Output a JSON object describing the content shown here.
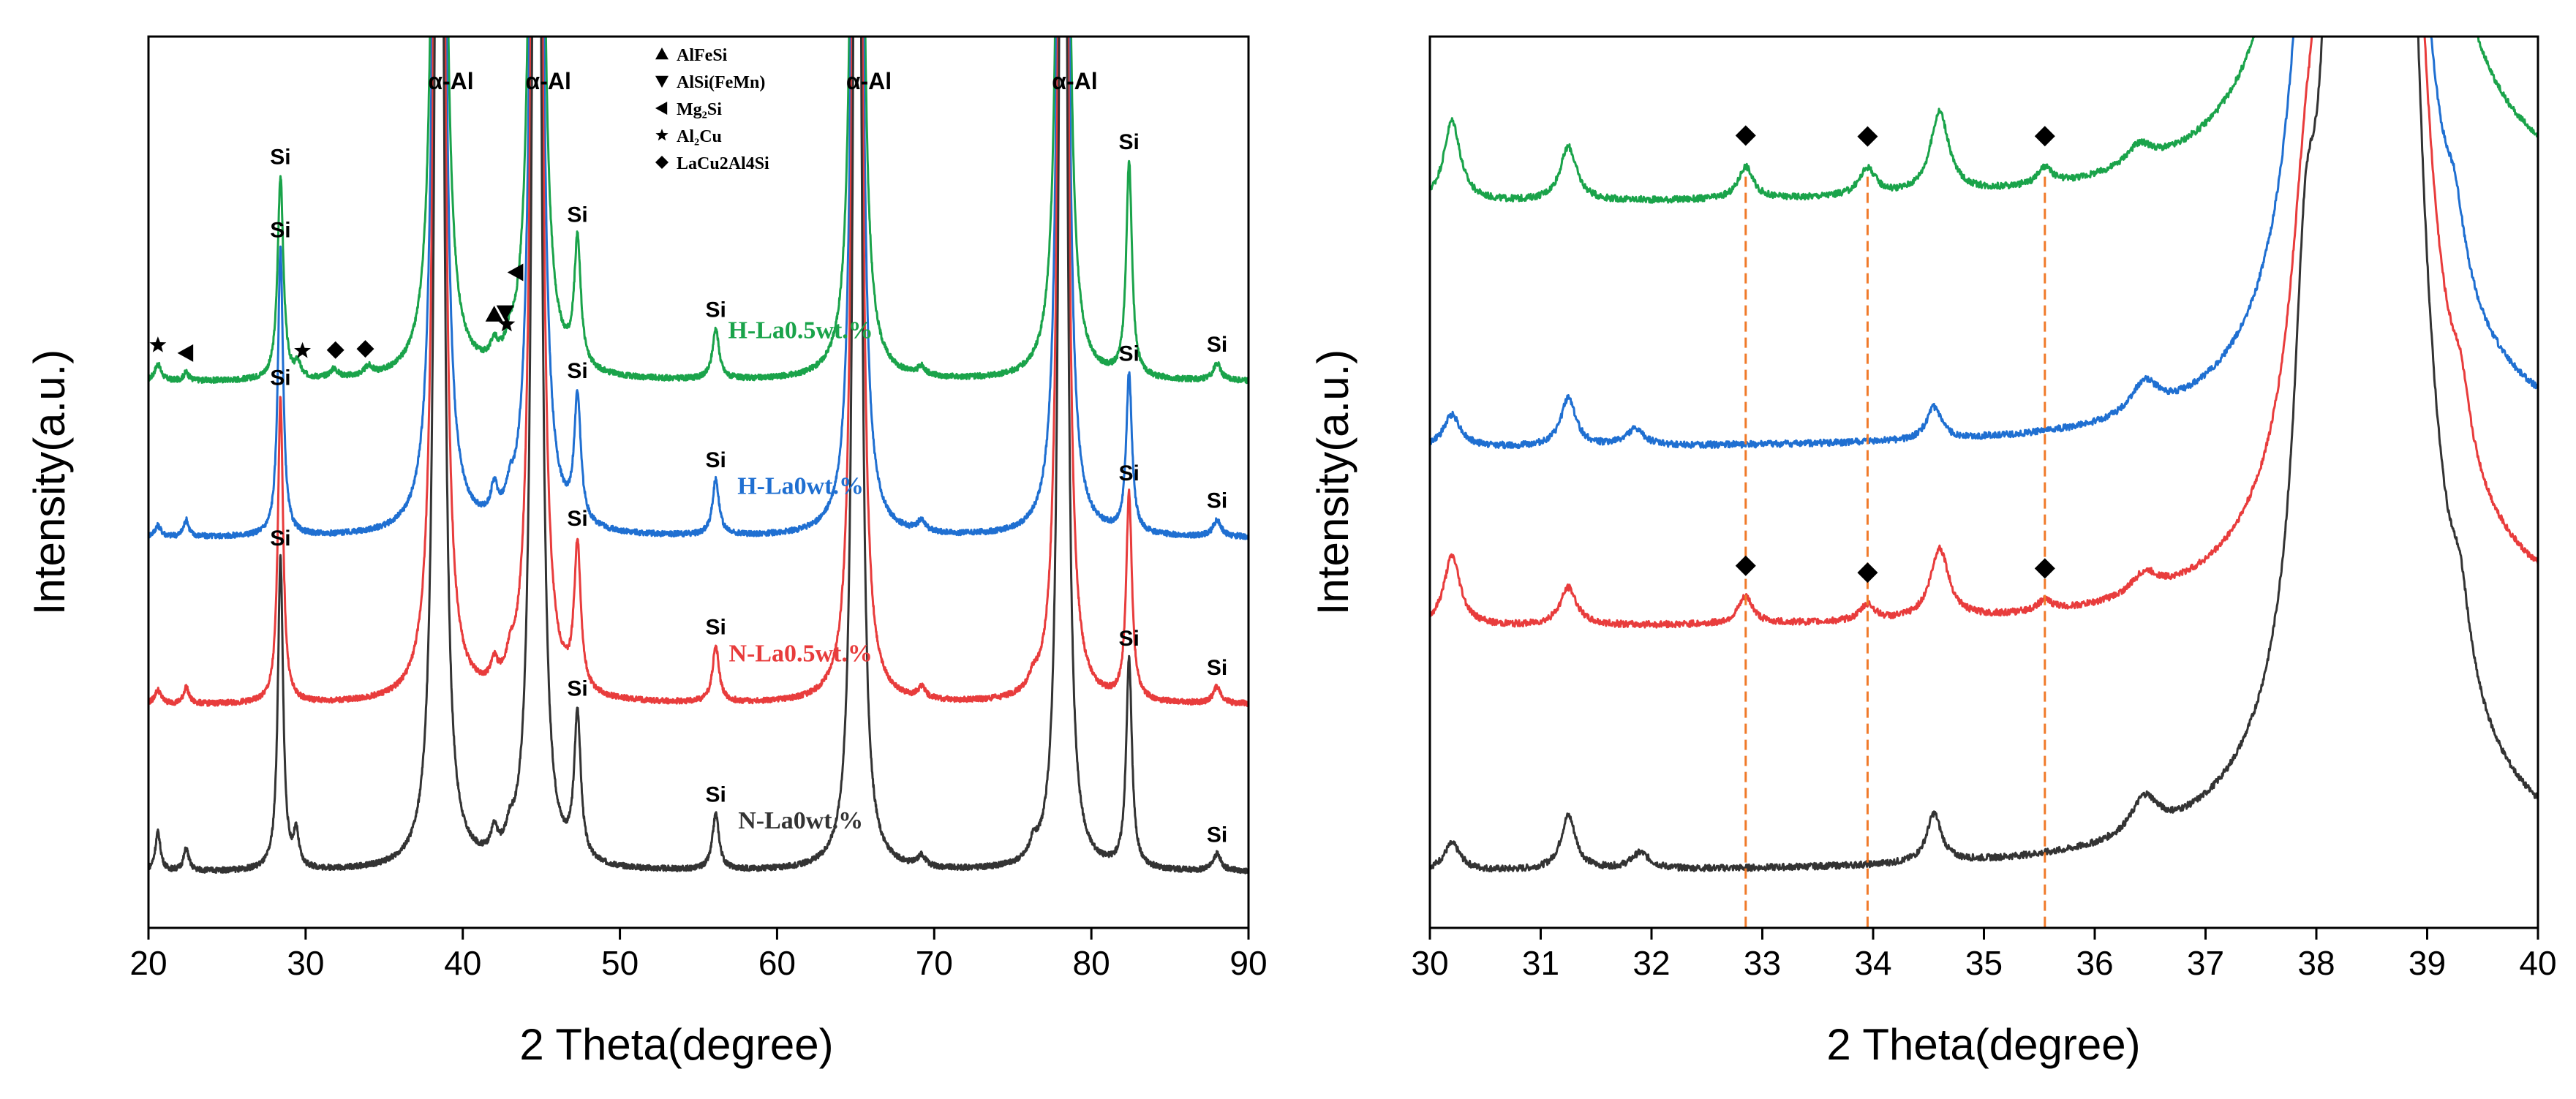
{
  "chart_data": [
    {
      "type": "line",
      "panel": "left",
      "xlabel": "2 Theta(degree)",
      "ylabel": "Intensity(a.u.)",
      "xlim": [
        20,
        90
      ],
      "xticks": [
        20,
        30,
        40,
        50,
        60,
        70,
        80,
        90
      ],
      "y_ticks_shown": false,
      "series": [
        {
          "name": "H-La0.5wt.%",
          "color": "#1aa34a",
          "baseline": 0.86,
          "peaks": [
            {
              "x": 20.6,
              "h": 0.06,
              "w": 0.25
            },
            {
              "x": 22.4,
              "h": 0.03,
              "w": 0.2
            },
            {
              "x": 28.4,
              "h": 0.73,
              "w": 0.22
            },
            {
              "x": 29.5,
              "h": 0.05,
              "w": 0.2
            },
            {
              "x": 31.8,
              "h": 0.03,
              "w": 0.3
            },
            {
              "x": 34.0,
              "h": 0.03,
              "w": 0.3
            },
            {
              "x": 38.5,
              "h": 8.0,
              "w": 0.25
            },
            {
              "x": 42.0,
              "h": 0.06,
              "w": 0.25
            },
            {
              "x": 43.0,
              "h": 0.05,
              "w": 0.25
            },
            {
              "x": 44.7,
              "h": 8.0,
              "w": 0.25
            },
            {
              "x": 47.3,
              "h": 0.45,
              "w": 0.25
            },
            {
              "x": 56.1,
              "h": 0.18,
              "w": 0.25
            },
            {
              "x": 65.1,
              "h": 8.0,
              "w": 0.22
            },
            {
              "x": 69.2,
              "h": 0.03,
              "w": 0.3
            },
            {
              "x": 78.2,
              "h": 8.0,
              "w": 0.22
            },
            {
              "x": 82.4,
              "h": 0.77,
              "w": 0.22
            },
            {
              "x": 88.0,
              "h": 0.06,
              "w": 0.3
            }
          ]
        },
        {
          "name": "H-La0wt.%",
          "color": "#1f6fd1",
          "baseline": 0.3,
          "peaks": [
            {
              "x": 20.6,
              "h": 0.04,
              "w": 0.25
            },
            {
              "x": 22.4,
              "h": 0.06,
              "w": 0.2
            },
            {
              "x": 28.4,
              "h": 1.03,
              "w": 0.2
            },
            {
              "x": 38.5,
              "h": 8.0,
              "w": 0.25
            },
            {
              "x": 42.0,
              "h": 0.1,
              "w": 0.25
            },
            {
              "x": 43.0,
              "h": 0.06,
              "w": 0.25
            },
            {
              "x": 44.7,
              "h": 8.0,
              "w": 0.25
            },
            {
              "x": 47.3,
              "h": 0.45,
              "w": 0.25
            },
            {
              "x": 56.1,
              "h": 0.2,
              "w": 0.25
            },
            {
              "x": 65.1,
              "h": 8.0,
              "w": 0.22
            },
            {
              "x": 69.2,
              "h": 0.04,
              "w": 0.3
            },
            {
              "x": 78.2,
              "h": 8.0,
              "w": 0.22
            },
            {
              "x": 82.4,
              "h": 0.57,
              "w": 0.22
            },
            {
              "x": 88.0,
              "h": 0.06,
              "w": 0.3
            }
          ]
        },
        {
          "name": "N-La0.5wt.%",
          "color": "#e83c3c",
          "baseline": -0.3,
          "peaks": [
            {
              "x": 20.6,
              "h": 0.05,
              "w": 0.25
            },
            {
              "x": 22.4,
              "h": 0.06,
              "w": 0.2
            },
            {
              "x": 28.4,
              "h": 1.1,
              "w": 0.2
            },
            {
              "x": 38.5,
              "h": 8.0,
              "w": 0.25
            },
            {
              "x": 42.0,
              "h": 0.07,
              "w": 0.25
            },
            {
              "x": 43.0,
              "h": 0.06,
              "w": 0.25
            },
            {
              "x": 44.7,
              "h": 8.0,
              "w": 0.25
            },
            {
              "x": 47.3,
              "h": 0.52,
              "w": 0.25
            },
            {
              "x": 56.1,
              "h": 0.2,
              "w": 0.25
            },
            {
              "x": 65.1,
              "h": 8.0,
              "w": 0.22
            },
            {
              "x": 69.2,
              "h": 0.04,
              "w": 0.3
            },
            {
              "x": 76.3,
              "h": 0.04,
              "w": 0.3
            },
            {
              "x": 78.2,
              "h": 8.0,
              "w": 0.22
            },
            {
              "x": 82.4,
              "h": 0.74,
              "w": 0.22
            },
            {
              "x": 88.0,
              "h": 0.06,
              "w": 0.3
            }
          ]
        },
        {
          "name": "N-La0wt.%",
          "color": "#333333",
          "baseline": -0.9,
          "peaks": [
            {
              "x": 20.6,
              "h": 0.14,
              "w": 0.2
            },
            {
              "x": 22.4,
              "h": 0.08,
              "w": 0.2
            },
            {
              "x": 28.4,
              "h": 1.12,
              "w": 0.2
            },
            {
              "x": 29.4,
              "h": 0.12,
              "w": 0.2
            },
            {
              "x": 38.5,
              "h": 7.0,
              "w": 0.25
            },
            {
              "x": 42.0,
              "h": 0.08,
              "w": 0.25
            },
            {
              "x": 43.0,
              "h": 0.06,
              "w": 0.25
            },
            {
              "x": 44.7,
              "h": 7.0,
              "w": 0.25
            },
            {
              "x": 47.3,
              "h": 0.52,
              "w": 0.25
            },
            {
              "x": 56.1,
              "h": 0.2,
              "w": 0.25
            },
            {
              "x": 65.1,
              "h": 7.0,
              "w": 0.22
            },
            {
              "x": 69.2,
              "h": 0.04,
              "w": 0.3
            },
            {
              "x": 76.3,
              "h": 0.05,
              "w": 0.3
            },
            {
              "x": 78.2,
              "h": 7.0,
              "w": 0.22
            },
            {
              "x": 82.4,
              "h": 0.75,
              "w": 0.22
            },
            {
              "x": 88.0,
              "h": 0.06,
              "w": 0.3
            }
          ]
        }
      ],
      "peak_labels": [
        {
          "text": "Si",
          "x": 28.4,
          "series": 0
        },
        {
          "text": "Si",
          "x": 47.3,
          "series": 0
        },
        {
          "text": "Si",
          "x": 56.1,
          "series": 0
        },
        {
          "text": "Si",
          "x": 82.4,
          "series": 0
        },
        {
          "text": "Si",
          "x": 88.0,
          "series": 0
        },
        {
          "text": "Si",
          "x": 28.4,
          "series": 1
        },
        {
          "text": "Si",
          "x": 47.3,
          "series": 1
        },
        {
          "text": "Si",
          "x": 56.1,
          "series": 1
        },
        {
          "text": "Si",
          "x": 82.4,
          "series": 1
        },
        {
          "text": "Si",
          "x": 88.0,
          "series": 1
        },
        {
          "text": "Si",
          "x": 28.4,
          "series": 2
        },
        {
          "text": "Si",
          "x": 47.3,
          "series": 2
        },
        {
          "text": "Si",
          "x": 56.1,
          "series": 2
        },
        {
          "text": "Si",
          "x": 82.4,
          "series": 2
        },
        {
          "text": "Si",
          "x": 88.0,
          "series": 2
        },
        {
          "text": "Si",
          "x": 28.4,
          "series": 3
        },
        {
          "text": "Si",
          "x": 47.3,
          "series": 3
        },
        {
          "text": "Si",
          "x": 56.1,
          "series": 3
        },
        {
          "text": "Si",
          "x": 82.4,
          "series": 3
        },
        {
          "text": "Si",
          "x": 88.0,
          "series": 3
        }
      ],
      "alpha_labels": [
        {
          "text": "α-Al",
          "x": 38.5
        },
        {
          "text": "α-Al",
          "x": 44.7
        },
        {
          "text": "α-Al",
          "x": 65.1
        },
        {
          "text": "α-Al",
          "x": 78.2
        }
      ],
      "phase_markers": [
        {
          "symbol": "star",
          "x": 20.6
        },
        {
          "symbol": "left-triangle",
          "x": 22.4
        },
        {
          "symbol": "star",
          "x": 29.8
        },
        {
          "symbol": "diamond",
          "x": 31.9
        },
        {
          "symbol": "diamond",
          "x": 33.8
        },
        {
          "symbol": "triangle-up",
          "x": 42.0
        },
        {
          "symbol": "triangle-down",
          "x": 42.7
        },
        {
          "symbol": "left-triangle",
          "x": 43.4
        },
        {
          "symbol": "star",
          "x": 42.8
        }
      ],
      "legend": {
        "placement": "top-center",
        "entries": [
          {
            "symbol": "triangle-up",
            "label": "AlFeSi"
          },
          {
            "symbol": "triangle-down",
            "label": "AlSi(FeMn)"
          },
          {
            "symbol": "left-triangle",
            "label": "Mg₂Si"
          },
          {
            "symbol": "star",
            "label": "Al₂Cu"
          },
          {
            "symbol": "diamond",
            "label": "LaCu2Al4Si"
          }
        ]
      }
    },
    {
      "type": "line",
      "panel": "right",
      "xlabel": "2 Theta(degree)",
      "ylabel": "Intensity(a.u.)",
      "xlim": [
        30,
        40
      ],
      "xticks": [
        30,
        31,
        32,
        33,
        34,
        35,
        36,
        37,
        38,
        39,
        40
      ],
      "y_ticks_shown": false,
      "series": [
        {
          "name": "H-La0.5wt.%",
          "color": "#1aa34a",
          "baseline": 5.85,
          "peaks": [
            {
              "x": 30.2,
              "h": 0.75,
              "w": 0.09
            },
            {
              "x": 31.25,
              "h": 0.5,
              "w": 0.09
            },
            {
              "x": 32.85,
              "h": 0.3,
              "w": 0.08
            },
            {
              "x": 33.95,
              "h": 0.25,
              "w": 0.09
            },
            {
              "x": 34.6,
              "h": 0.75,
              "w": 0.1
            },
            {
              "x": 35.55,
              "h": 0.15,
              "w": 0.08
            },
            {
              "x": 36.4,
              "h": 0.2,
              "w": 0.15
            },
            {
              "x": 37.85,
              "h": 0.7,
              "w": 0.15
            },
            {
              "x": 38.45,
              "h": 60.0,
              "w": 0.16
            },
            {
              "x": 39.2,
              "h": 0.55,
              "w": 0.1
            }
          ]
        },
        {
          "name": "H-La0wt.%",
          "color": "#1f6fd1",
          "baseline": 3.6,
          "peaks": [
            {
              "x": 30.2,
              "h": 0.3,
              "w": 0.09
            },
            {
              "x": 31.25,
              "h": 0.45,
              "w": 0.08
            },
            {
              "x": 31.85,
              "h": 0.15,
              "w": 0.1
            },
            {
              "x": 34.55,
              "h": 0.3,
              "w": 0.08
            },
            {
              "x": 36.45,
              "h": 0.3,
              "w": 0.15
            },
            {
              "x": 37.9,
              "h": 1.2,
              "w": 0.16
            },
            {
              "x": 38.45,
              "h": 60.0,
              "w": 0.15
            },
            {
              "x": 39.25,
              "h": 0.5,
              "w": 0.1
            }
          ]
        },
        {
          "name": "N-La0.5wt.%",
          "color": "#e83c3c",
          "baseline": 1.95,
          "peaks": [
            {
              "x": 30.2,
              "h": 0.65,
              "w": 0.09
            },
            {
              "x": 31.25,
              "h": 0.35,
              "w": 0.09
            },
            {
              "x": 32.85,
              "h": 0.25,
              "w": 0.08
            },
            {
              "x": 33.95,
              "h": 0.15,
              "w": 0.08
            },
            {
              "x": 34.6,
              "h": 0.65,
              "w": 0.1
            },
            {
              "x": 35.55,
              "h": 0.1,
              "w": 0.08
            },
            {
              "x": 36.45,
              "h": 0.2,
              "w": 0.15
            },
            {
              "x": 37.9,
              "h": 1.3,
              "w": 0.16
            },
            {
              "x": 38.5,
              "h": 60.0,
              "w": 0.15
            },
            {
              "x": 39.3,
              "h": 0.5,
              "w": 0.1
            }
          ]
        },
        {
          "name": "N-La0wt.%",
          "color": "#333333",
          "baseline": -0.3,
          "peaks": [
            {
              "x": 30.2,
              "h": 0.25,
              "w": 0.09
            },
            {
              "x": 31.25,
              "h": 0.5,
              "w": 0.08
            },
            {
              "x": 31.9,
              "h": 0.15,
              "w": 0.1
            },
            {
              "x": 34.55,
              "h": 0.45,
              "w": 0.08
            },
            {
              "x": 36.45,
              "h": 0.35,
              "w": 0.15
            },
            {
              "x": 37.9,
              "h": 2.4,
              "w": 0.12
            },
            {
              "x": 38.5,
              "h": 60.0,
              "w": 0.16
            },
            {
              "x": 39.3,
              "h": 0.6,
              "w": 0.1
            }
          ]
        }
      ],
      "diamond_markers": [
        {
          "x": 32.85,
          "series": 0
        },
        {
          "x": 33.95,
          "series": 0
        },
        {
          "x": 35.55,
          "series": 0
        },
        {
          "x": 32.85,
          "series": 2
        },
        {
          "x": 33.95,
          "series": 2
        },
        {
          "x": 35.55,
          "series": 2
        }
      ],
      "reference_lines": {
        "x": [
          32.85,
          33.95,
          35.55
        ],
        "color": "#f07a2a",
        "style": "dashed"
      }
    }
  ]
}
